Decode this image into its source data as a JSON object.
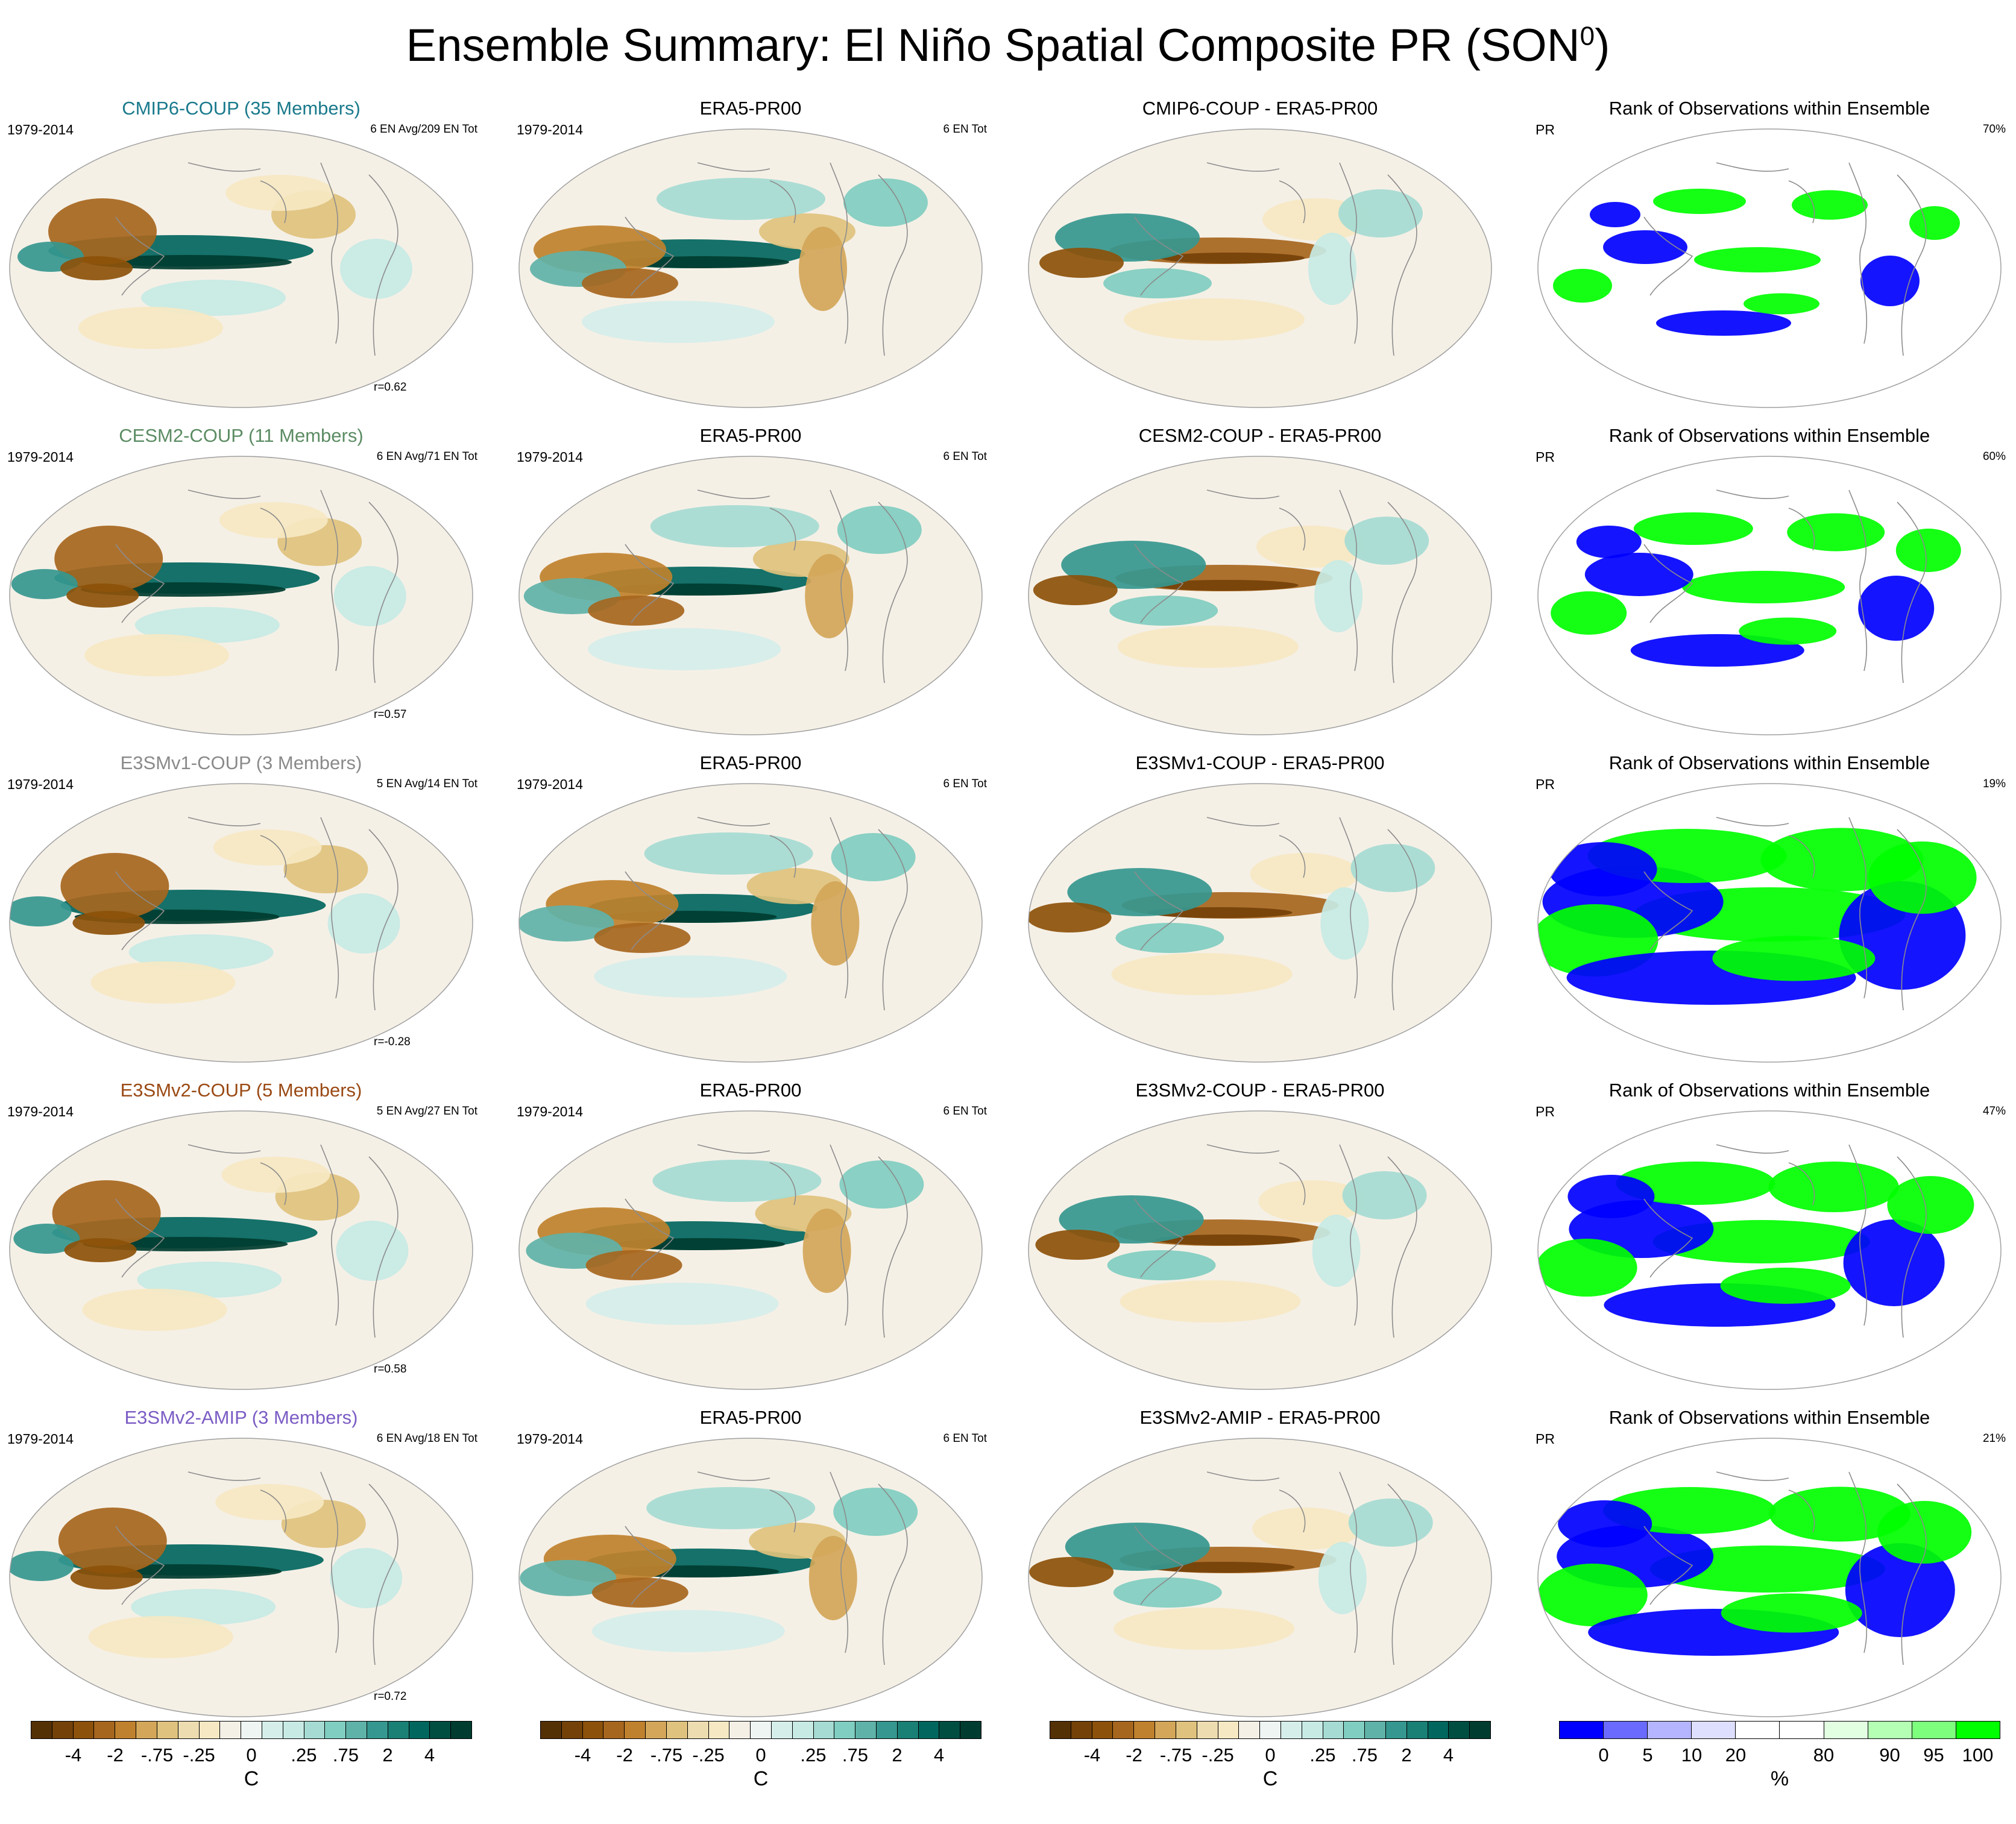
{
  "title": "Ensemble Summary: El Niño Spatial Composite PR (SON",
  "title_sup": "0",
  "title_close": ")",
  "rows": [
    {
      "model": {
        "title": "CMIP6-COUP (35 Members)",
        "title_color": "#1a7a8c",
        "left": "1979-2014",
        "right": "6 EN Avg/209 EN Tot",
        "r": "r=0.62"
      },
      "obs": {
        "title": "ERA5-PR00",
        "left": "1979-2014",
        "right": "6 EN Tot"
      },
      "diff": {
        "title": "CMIP6-COUP - ERA5-PR00"
      },
      "rank": {
        "title": "Rank of Observations within Ensemble",
        "left": "PR",
        "right": "70%"
      }
    },
    {
      "model": {
        "title": "CESM2-COUP (11 Members)",
        "title_color": "#5b8c63",
        "left": "1979-2014",
        "right": "6 EN Avg/71 EN Tot",
        "r": "r=0.57"
      },
      "obs": {
        "title": "ERA5-PR00",
        "left": "1979-2014",
        "right": "6 EN Tot"
      },
      "diff": {
        "title": "CESM2-COUP - ERA5-PR00"
      },
      "rank": {
        "title": "Rank of Observations within Ensemble",
        "left": "PR",
        "right": "60%"
      }
    },
    {
      "model": {
        "title": "E3SMv1-COUP (3 Members)",
        "title_color": "#8a8a8a",
        "left": "1979-2014",
        "right": "5 EN Avg/14 EN Tot",
        "r": "r=-0.28"
      },
      "obs": {
        "title": "ERA5-PR00",
        "left": "1979-2014",
        "right": "6 EN Tot"
      },
      "diff": {
        "title": "E3SMv1-COUP - ERA5-PR00"
      },
      "rank": {
        "title": "Rank of Observations within Ensemble",
        "left": "PR",
        "right": "19%"
      }
    },
    {
      "model": {
        "title": "E3SMv2-COUP (5 Members)",
        "title_color": "#9a4a14",
        "left": "1979-2014",
        "right": "5 EN Avg/27 EN Tot",
        "r": "r=0.58"
      },
      "obs": {
        "title": "ERA5-PR00",
        "left": "1979-2014",
        "right": "6 EN Tot"
      },
      "diff": {
        "title": "E3SMv2-COUP - ERA5-PR00"
      },
      "rank": {
        "title": "Rank of Observations within Ensemble",
        "left": "PR",
        "right": "47%"
      }
    },
    {
      "model": {
        "title": "E3SMv2-AMIP (3 Members)",
        "title_color": "#7b5cc4",
        "left": "1979-2014",
        "right": "6 EN Avg/18 EN Tot",
        "r": "r=0.72"
      },
      "obs": {
        "title": "ERA5-PR00",
        "left": "1979-2014",
        "right": "6 EN Tot"
      },
      "diff": {
        "title": "E3SMv2-AMIP - ERA5-PR00"
      },
      "rank": {
        "title": "Rank of Observations within Ensemble",
        "left": "PR",
        "right": "21%"
      }
    }
  ],
  "colorbars": {
    "brbg": {
      "colors": [
        "#543005",
        "#744109",
        "#8c510a",
        "#a6661e",
        "#bf812d",
        "#d3a659",
        "#dfc27d",
        "#ecdcb0",
        "#f6e8c3",
        "#f5f0e6",
        "#eef5f3",
        "#d5eeea",
        "#c7eae5",
        "#a5dbd2",
        "#80cdc1",
        "#5fb2a8",
        "#35978f",
        "#1a7f75",
        "#01665e",
        "#004d42",
        "#003c30"
      ],
      "ticks": [
        "-4",
        "-2",
        "-.75",
        "-.25",
        "0",
        ".25",
        ".75",
        "2",
        "4"
      ],
      "unit": "C"
    },
    "rank": {
      "colors": [
        "#0000ff",
        "#6a6aff",
        "#b4b4ff",
        "#dedeff",
        "#ffffff",
        "#ffffff",
        "#e2ffe2",
        "#b4ffb4",
        "#7dff7d",
        "#00ff00"
      ],
      "ticks": [
        "0",
        "5",
        "10",
        "20",
        "80",
        "90",
        "95",
        "100"
      ],
      "unit": "%"
    }
  },
  "palette": {
    "land_line": "#8c8c8c",
    "green": "#00ff00",
    "blue": "#0000ff",
    "warm": "#bf812d",
    "cool": "#01665e"
  }
}
